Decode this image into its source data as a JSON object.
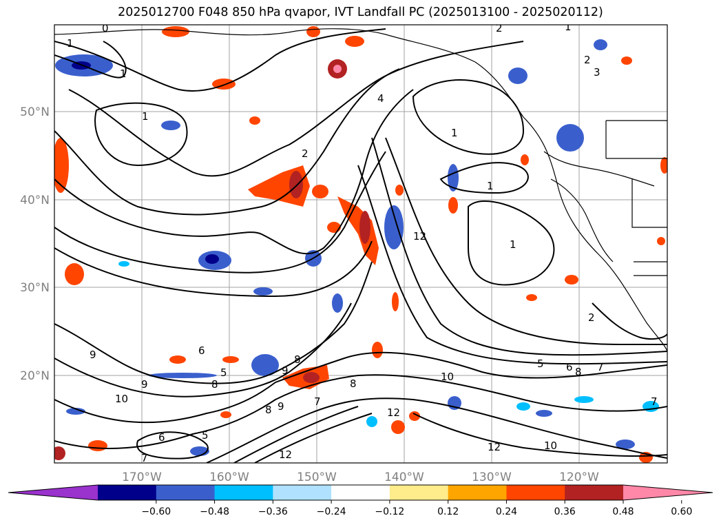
{
  "title": "2025012700 F048 850 hPa qvapor, IVT Landfall PC (2025013100 - 2025020112)",
  "lat_labels": [
    "50°N",
    "40°N",
    "30°N",
    "20°N"
  ],
  "lon_labels": [
    "170°W",
    "160°W",
    "150°W",
    "140°W",
    "130°W",
    "120°W"
  ],
  "colorbar": {
    "ticks": [
      "−0.60",
      "−0.48",
      "−0.36",
      "−0.24",
      "−0.12",
      "0.12",
      "0.24",
      "0.36",
      "0.48",
      "0.60"
    ],
    "colors": [
      "#9a32cd",
      "#00008b",
      "#3a5fcd",
      "#00bfff",
      "#b0e2ff",
      "#ffffff",
      "#ffec8b",
      "#ffa500",
      "#ff4500",
      "#b22222",
      "#ff88a8"
    ]
  },
  "contour_labels": [
    "0",
    "1",
    "1",
    "1",
    "1",
    "2",
    "2",
    "3",
    "4",
    "1",
    "1",
    "1",
    "2",
    "2",
    "5",
    "6",
    "8",
    "7",
    "10",
    "12",
    "12",
    "7",
    "6",
    "5",
    "8",
    "9",
    "8",
    "9",
    "10",
    "9",
    "8",
    "12",
    "7",
    "6",
    "5",
    "7",
    "8",
    "9",
    "10",
    "12"
  ],
  "map_extent": {
    "lon_min": -180,
    "lon_max": -110,
    "lat_min": 10,
    "lat_max": 60
  }
}
